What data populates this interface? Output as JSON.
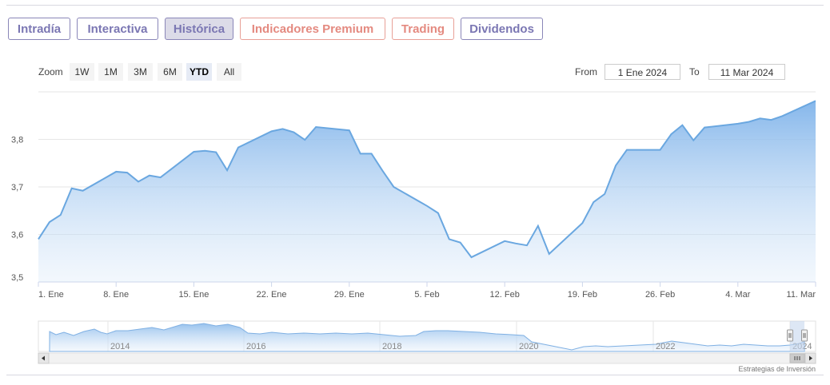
{
  "tabs": [
    {
      "label": "Intradía",
      "active": false,
      "style": "normal"
    },
    {
      "label": "Interactiva",
      "active": false,
      "style": "normal"
    },
    {
      "label": "Histórica",
      "active": true,
      "style": "normal"
    },
    {
      "label": "Indicadores Premium",
      "active": false,
      "style": "premium"
    },
    {
      "label": "Trading",
      "active": false,
      "style": "premium"
    },
    {
      "label": "Dividendos",
      "active": false,
      "style": "normal"
    }
  ],
  "zoom": {
    "label": "Zoom",
    "buttons": [
      {
        "label": "1W",
        "active": false
      },
      {
        "label": "1M",
        "active": false
      },
      {
        "label": "3M",
        "active": false
      },
      {
        "label": "6M",
        "active": false
      },
      {
        "label": "YTD",
        "active": true
      },
      {
        "label": "All",
        "active": false
      }
    ]
  },
  "range": {
    "from_label": "From",
    "from_value": "1 Ene 2024",
    "to_label": "To",
    "to_value": "11 Mar 2024"
  },
  "colors": {
    "series_line": "#6aa7e0",
    "tab_border": "#8a86b8",
    "premium": "#e48a80"
  },
  "chart_data": {
    "type": "area",
    "x_tick_labels": [
      "1. Ene",
      "8. Ene",
      "15. Ene",
      "22. Ene",
      "29. Ene",
      "5. Feb",
      "12. Feb",
      "19. Feb",
      "26. Feb",
      "4. Mar",
      "11. Mar"
    ],
    "x": [
      "2024-01-01",
      "2024-01-02",
      "2024-01-03",
      "2024-01-04",
      "2024-01-05",
      "2024-01-08",
      "2024-01-09",
      "2024-01-10",
      "2024-01-11",
      "2024-01-12",
      "2024-01-15",
      "2024-01-16",
      "2024-01-17",
      "2024-01-18",
      "2024-01-19",
      "2024-01-22",
      "2024-01-23",
      "2024-01-24",
      "2024-01-25",
      "2024-01-26",
      "2024-01-29",
      "2024-01-30",
      "2024-01-31",
      "2024-02-01",
      "2024-02-02",
      "2024-02-05",
      "2024-02-06",
      "2024-02-07",
      "2024-02-08",
      "2024-02-09",
      "2024-02-12",
      "2024-02-13",
      "2024-02-14",
      "2024-02-15",
      "2024-02-16",
      "2024-02-19",
      "2024-02-20",
      "2024-02-21",
      "2024-02-22",
      "2024-02-23",
      "2024-02-26",
      "2024-02-27",
      "2024-02-28",
      "2024-02-29",
      "2024-03-01",
      "2024-03-04",
      "2024-03-05",
      "2024-03-06",
      "2024-03-07",
      "2024-03-08",
      "2024-03-11"
    ],
    "values": [
      3.59,
      3.626,
      3.641,
      3.697,
      3.692,
      3.732,
      3.73,
      3.711,
      3.724,
      3.72,
      3.774,
      3.776,
      3.773,
      3.735,
      3.783,
      3.817,
      3.822,
      3.815,
      3.799,
      3.826,
      3.819,
      3.77,
      3.77,
      3.734,
      3.7,
      3.66,
      3.645,
      3.59,
      3.583,
      3.552,
      3.586,
      3.581,
      3.577,
      3.618,
      3.559,
      3.624,
      3.668,
      3.685,
      3.745,
      3.778,
      3.778,
      3.811,
      3.83,
      3.798,
      3.825,
      3.833,
      3.837,
      3.844,
      3.841,
      3.849,
      3.881
    ],
    "y_ticks": [
      3.5,
      3.6,
      3.7,
      3.8
    ],
    "y_tick_labels": [
      "3,5",
      "3,6",
      "3,7",
      "3,8"
    ],
    "ylim": [
      3.5,
      3.9
    ],
    "grid": true,
    "navigator": {
      "year_labels": [
        "2014",
        "2016",
        "2018",
        "2020",
        "2022",
        "2024"
      ]
    }
  },
  "credit": "Estrategias de Inversión"
}
